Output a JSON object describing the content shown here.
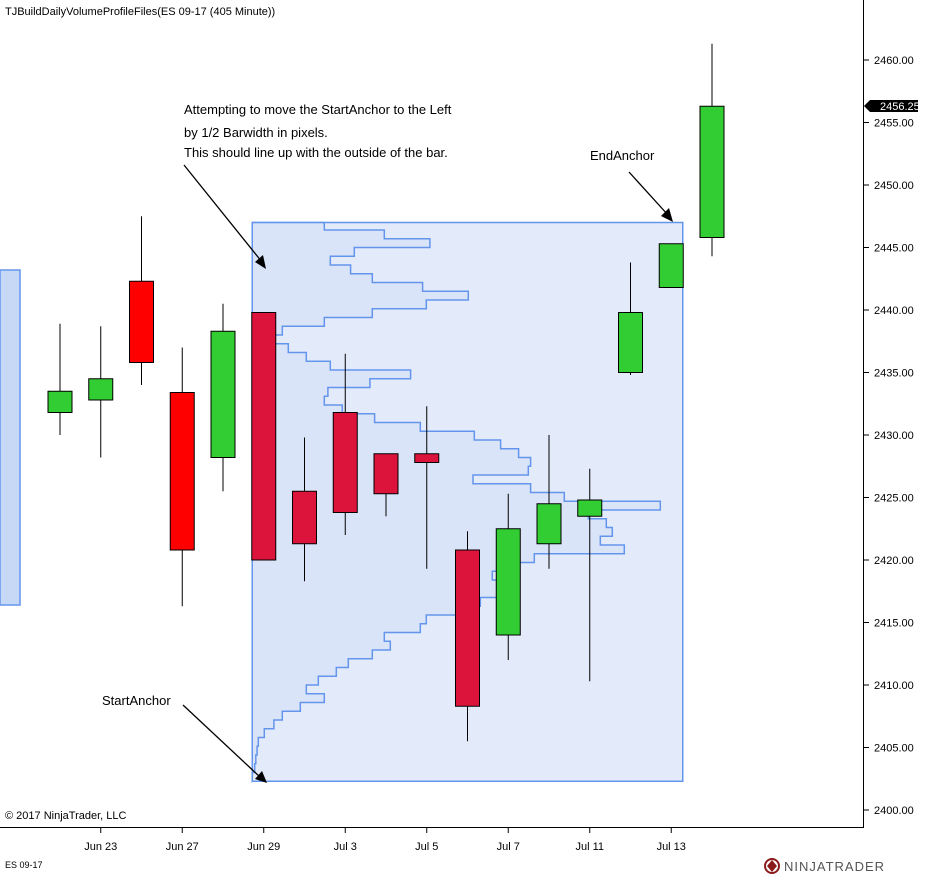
{
  "window": {
    "title": "TJBuildDailyVolumeProfileFiles(ES 09-17 (405 Minute))"
  },
  "footer": {
    "copyright": "© 2017 NinjaTrader, LLC",
    "instrument": "ES 09-17",
    "brand": "NINJATRADER"
  },
  "annotations": {
    "move_note": [
      "Attempting to move the StartAnchor to the Left",
      "by 1/2 Barwidth in pixels.",
      "This should line up with the outside of the bar."
    ],
    "end_anchor": "EndAnchor",
    "start_anchor": "StartAnchor"
  },
  "colors": {
    "up": "#32cd32",
    "down_red": "#ff0000",
    "down_crimson": "#dc143c",
    "profile_line": "#6495ed",
    "profile_fill": "#dde6f8"
  },
  "chart_data": {
    "type": "candlestick",
    "title": "TJBuildDailyVolumeProfileFiles(ES 09-17 (405 Minute))",
    "ylim": [
      2399,
      2464
    ],
    "y_ticks": [
      2400,
      2405,
      2410,
      2415,
      2420,
      2425,
      2430,
      2435,
      2440,
      2445,
      2450,
      2455,
      2460
    ],
    "last_price": "2456.25",
    "x_labels": [
      "Jun 23",
      "Jun 27",
      "Jun 29",
      "Jul 3",
      "Jul 5",
      "Jul 7",
      "Jul 11",
      "Jul 13"
    ],
    "candles": [
      {
        "open": 2431.8,
        "high": 2438.9,
        "low": 2430.0,
        "close": 2433.5
      },
      {
        "open": 2432.8,
        "high": 2438.7,
        "low": 2428.2,
        "close": 2434.5
      },
      {
        "open": 2442.3,
        "high": 2447.5,
        "low": 2434.0,
        "close": 2435.8
      },
      {
        "open": 2433.4,
        "high": 2437.0,
        "low": 2416.3,
        "close": 2420.8
      },
      {
        "open": 2428.2,
        "high": 2440.5,
        "low": 2425.5,
        "close": 2438.3
      },
      {
        "open": 2439.8,
        "high": 2439.8,
        "low": 2420.0,
        "close": 2420.0
      },
      {
        "open": 2425.5,
        "high": 2429.8,
        "low": 2418.3,
        "close": 2421.3
      },
      {
        "open": 2431.8,
        "high": 2436.5,
        "low": 2422.0,
        "close": 2423.8
      },
      {
        "open": 2428.5,
        "high": 2428.5,
        "low": 2423.5,
        "close": 2425.3
      },
      {
        "open": 2428.5,
        "high": 2432.3,
        "low": 2419.3,
        "close": 2427.8
      },
      {
        "open": 2420.8,
        "high": 2422.3,
        "low": 2405.5,
        "close": 2408.3
      },
      {
        "open": 2414.0,
        "high": 2425.3,
        "low": 2412.0,
        "close": 2422.5
      },
      {
        "open": 2421.3,
        "high": 2430.0,
        "low": 2419.3,
        "close": 2424.5
      },
      {
        "open": 2423.5,
        "high": 2427.3,
        "low": 2410.3,
        "close": 2424.8
      },
      {
        "open": 2435.0,
        "high": 2443.8,
        "low": 2434.8,
        "close": 2439.8
      },
      {
        "open": 2441.8,
        "high": 2445.3,
        "low": 2441.8,
        "close": 2445.3
      },
      {
        "open": 2445.8,
        "high": 2461.3,
        "low": 2444.3,
        "close": 2456.3
      }
    ],
    "volume_profile": {
      "price_range": [
        2402.3,
        2447.0
      ],
      "bins": [
        [
          2402.3,
          0
        ],
        [
          2403.0,
          2
        ],
        [
          2403.7,
          3
        ],
        [
          2404.4,
          4
        ],
        [
          2405.1,
          5
        ],
        [
          2405.8,
          10
        ],
        [
          2406.5,
          18
        ],
        [
          2407.2,
          25
        ],
        [
          2407.9,
          40
        ],
        [
          2408.6,
          60
        ],
        [
          2409.3,
          45
        ],
        [
          2410.0,
          55
        ],
        [
          2410.7,
          70
        ],
        [
          2411.4,
          80
        ],
        [
          2412.1,
          100
        ],
        [
          2412.8,
          115
        ],
        [
          2413.5,
          110
        ],
        [
          2414.2,
          140
        ],
        [
          2414.9,
          145
        ],
        [
          2415.6,
          175
        ],
        [
          2416.3,
          190
        ],
        [
          2417.0,
          210
        ],
        [
          2417.7,
          215
        ],
        [
          2418.4,
          200
        ],
        [
          2419.1,
          210
        ],
        [
          2419.8,
          235
        ],
        [
          2420.5,
          310
        ],
        [
          2421.2,
          290
        ],
        [
          2421.9,
          300
        ],
        [
          2422.6,
          295
        ],
        [
          2423.3,
          280
        ],
        [
          2424.0,
          340
        ],
        [
          2424.7,
          260
        ],
        [
          2425.4,
          232
        ],
        [
          2426.1,
          184
        ],
        [
          2426.8,
          230
        ],
        [
          2427.5,
          232
        ],
        [
          2428.2,
          222
        ],
        [
          2428.9,
          207
        ],
        [
          2429.6,
          185
        ],
        [
          2430.3,
          140
        ],
        [
          2431.0,
          102
        ],
        [
          2431.7,
          75
        ],
        [
          2432.4,
          60
        ],
        [
          2433.1,
          63
        ],
        [
          2433.8,
          98
        ],
        [
          2434.5,
          132
        ],
        [
          2435.2,
          65
        ],
        [
          2435.9,
          45
        ],
        [
          2436.6,
          30
        ],
        [
          2437.3,
          10
        ],
        [
          2438.0,
          25
        ],
        [
          2438.7,
          60
        ],
        [
          2439.4,
          100
        ],
        [
          2440.1,
          145
        ],
        [
          2440.8,
          180
        ],
        [
          2441.5,
          142
        ],
        [
          2442.2,
          100
        ],
        [
          2442.9,
          82
        ],
        [
          2443.6,
          65
        ],
        [
          2444.3,
          85
        ],
        [
          2445.0,
          148
        ],
        [
          2445.7,
          110
        ],
        [
          2446.4,
          60
        ],
        [
          2447.0,
          0
        ]
      ]
    }
  }
}
